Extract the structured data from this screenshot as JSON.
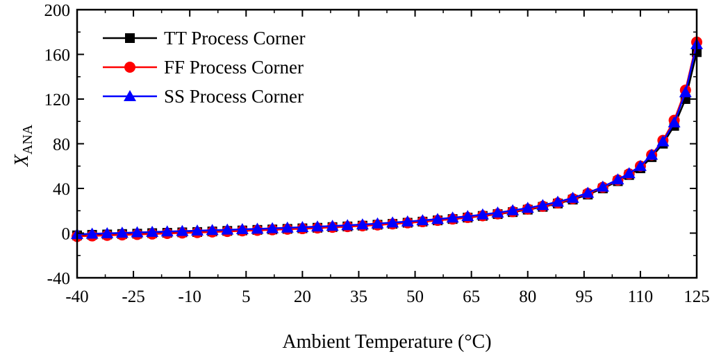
{
  "chart_data": {
    "type": "line",
    "title": "",
    "xlabel": "Ambient Temperature (°C)",
    "ylabel_main": "X",
    "ylabel_sub": "ANA",
    "xlim": [
      -40,
      125
    ],
    "ylim": [
      -40,
      200
    ],
    "xticks": [
      -40,
      -25,
      -10,
      5,
      20,
      35,
      50,
      65,
      80,
      95,
      110,
      125
    ],
    "yticks": [
      -40,
      0,
      40,
      80,
      120,
      160,
      200
    ],
    "legend_position": "top-left",
    "grid": false,
    "series": [
      {
        "name": "TT Process Corner",
        "color": "#000000",
        "marker": "square",
        "x": [
          -40,
          -36,
          -32,
          -28,
          -24,
          -20,
          -16,
          -12,
          -8,
          -4,
          0,
          4,
          8,
          12,
          16,
          20,
          24,
          28,
          32,
          36,
          40,
          44,
          48,
          52,
          56,
          60,
          64,
          68,
          72,
          76,
          80,
          84,
          88,
          92,
          96,
          100,
          104,
          107,
          110,
          113,
          116,
          119,
          122,
          125
        ],
        "y": [
          -2,
          -1.5,
          -1.2,
          -0.8,
          -0.5,
          0,
          0.3,
          0.7,
          1,
          1.5,
          2,
          2.4,
          2.9,
          3.3,
          3.8,
          4.3,
          4.8,
          5.4,
          6,
          6.7,
          7.5,
          8.3,
          9.3,
          10.3,
          11.4,
          12.6,
          13.9,
          15.4,
          17,
          18.8,
          21,
          23.5,
          26.5,
          30,
          34.5,
          40,
          46.5,
          52,
          58,
          68,
          80,
          96,
          120,
          162
        ]
      },
      {
        "name": "FF Process Corner",
        "color": "#ff0000",
        "marker": "circle",
        "x": [
          -40,
          -36,
          -32,
          -28,
          -24,
          -20,
          -16,
          -12,
          -8,
          -4,
          0,
          4,
          8,
          12,
          16,
          20,
          24,
          28,
          32,
          36,
          40,
          44,
          48,
          52,
          56,
          60,
          64,
          68,
          72,
          76,
          80,
          84,
          88,
          92,
          96,
          100,
          104,
          107,
          110,
          113,
          116,
          119,
          122,
          125
        ],
        "y": [
          -3,
          -2.5,
          -2,
          -1.6,
          -1.2,
          -0.8,
          -0.3,
          0.1,
          0.5,
          1,
          1.5,
          2,
          2.5,
          3,
          3.5,
          4,
          4.6,
          5.2,
          5.8,
          6.5,
          7.3,
          8.2,
          9.2,
          10.2,
          11.4,
          12.6,
          14,
          15.5,
          17.2,
          19.2,
          21.5,
          24,
          27,
          30.8,
          35.5,
          41,
          47.5,
          53,
          60,
          70,
          83,
          101,
          128,
          171
        ]
      },
      {
        "name": "SS Process Corner",
        "color": "#0000ff",
        "marker": "triangle",
        "x": [
          -40,
          -36,
          -32,
          -28,
          -24,
          -20,
          -16,
          -12,
          -8,
          -4,
          0,
          4,
          8,
          12,
          16,
          20,
          24,
          28,
          32,
          36,
          40,
          44,
          48,
          52,
          56,
          60,
          64,
          68,
          72,
          76,
          80,
          84,
          88,
          92,
          96,
          100,
          104,
          107,
          110,
          113,
          116,
          119,
          122,
          125
        ],
        "y": [
          -1,
          -0.6,
          -0.2,
          0.2,
          0.6,
          1,
          1.4,
          1.8,
          2.2,
          2.6,
          3,
          3.4,
          3.8,
          4.3,
          4.8,
          5.3,
          5.8,
          6.4,
          7,
          7.7,
          8.5,
          9.4,
          10.3,
          11.4,
          12.5,
          13.8,
          15.1,
          16.6,
          18.3,
          20.3,
          22.5,
          25,
          28,
          31.5,
          36,
          41.5,
          48,
          53.5,
          60,
          70,
          82,
          99,
          126,
          169
        ]
      }
    ]
  }
}
